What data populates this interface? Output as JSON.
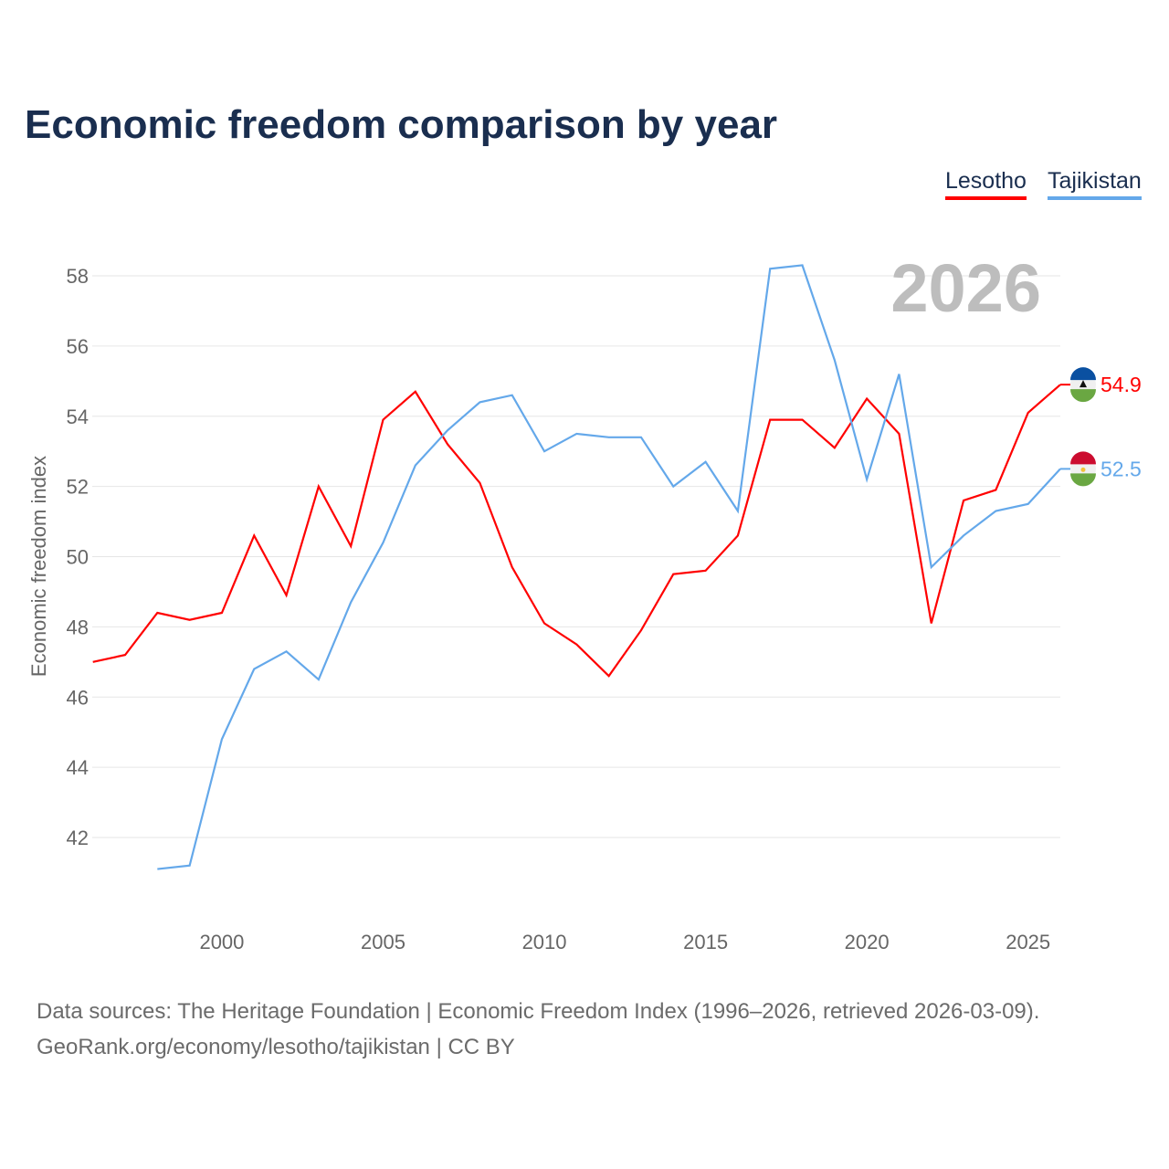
{
  "chart_data": {
    "type": "line",
    "title": "Economic freedom comparison by year",
    "ylabel": "Economic freedom index",
    "xlabel": "",
    "ylim": [
      40,
      59
    ],
    "xlim": [
      1996,
      2026
    ],
    "yticks": [
      42,
      44,
      46,
      48,
      50,
      52,
      54,
      56,
      58
    ],
    "xticks": [
      2000,
      2005,
      2010,
      2015,
      2020,
      2025
    ],
    "year_label": "2026",
    "legend_position": "top-right",
    "series": [
      {
        "name": "Lesotho",
        "color": "#ff0000",
        "end_label": "54.9",
        "x": [
          1996,
          1997,
          1998,
          1999,
          2000,
          2001,
          2002,
          2003,
          2004,
          2005,
          2006,
          2007,
          2008,
          2009,
          2010,
          2011,
          2012,
          2013,
          2014,
          2015,
          2016,
          2017,
          2018,
          2019,
          2020,
          2021,
          2022,
          2023,
          2024,
          2025,
          2026
        ],
        "values": [
          47.0,
          47.2,
          48.4,
          48.2,
          48.4,
          50.6,
          48.9,
          52.0,
          50.3,
          53.9,
          54.7,
          53.2,
          52.1,
          49.7,
          48.1,
          47.5,
          46.6,
          47.9,
          49.5,
          49.6,
          50.6,
          53.9,
          53.9,
          53.1,
          54.5,
          53.5,
          48.1,
          51.6,
          51.9,
          54.1,
          54.9
        ]
      },
      {
        "name": "Tajikistan",
        "color": "#64a8ea",
        "end_label": "52.5",
        "x": [
          1998,
          1999,
          2000,
          2001,
          2002,
          2003,
          2004,
          2005,
          2006,
          2007,
          2008,
          2009,
          2010,
          2011,
          2012,
          2013,
          2014,
          2015,
          2016,
          2017,
          2018,
          2019,
          2020,
          2021,
          2022,
          2023,
          2024,
          2025,
          2026
        ],
        "values": [
          41.1,
          41.2,
          44.8,
          46.8,
          47.3,
          46.5,
          48.7,
          50.4,
          52.6,
          53.6,
          54.4,
          54.6,
          53.0,
          53.5,
          53.4,
          53.4,
          52.0,
          52.7,
          51.3,
          58.2,
          58.3,
          55.6,
          52.2,
          55.2,
          49.7,
          50.6,
          51.3,
          51.5,
          52.5
        ]
      }
    ]
  },
  "source": {
    "line1": "Data sources: The Heritage Foundation | Economic Freedom Index (1996–2026, retrieved 2026-03-09).",
    "line2": "GeoRank.org/economy/lesotho/tajikistan | CC BY"
  }
}
